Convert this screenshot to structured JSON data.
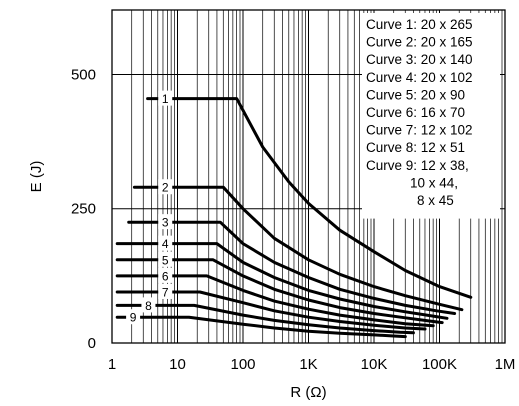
{
  "chart_data": {
    "type": "line",
    "title": "",
    "xlabel": "R (Ω)",
    "ylabel": "E (J)",
    "x_scale": "log",
    "xlim": [
      1,
      1000000
    ],
    "ylim": [
      0,
      620
    ],
    "x_ticks": [
      1,
      10,
      100,
      1000,
      10000,
      100000,
      1000000
    ],
    "x_tick_labels": [
      "1",
      "10",
      "100",
      "1K",
      "10K",
      "100K",
      "1M"
    ],
    "y_ticks": [
      0,
      250,
      500
    ],
    "y_tick_labels": [
      "0",
      "250",
      "500"
    ],
    "grid": true,
    "legend_position": "top-right",
    "legend_lines": [
      "Curve 1: 20 x 265",
      "Curve 2: 20 x 165",
      "Curve 3: 20 x 140",
      "Curve 4: 20 x 102",
      "Curve 5: 20 x 90",
      "Curve 6: 16 x 70",
      "Curve 7: 12 x 102",
      "Curve 8: 12 x 51",
      "Curve 9: 12 x 38,",
      "10 x 44,",
      "8 x 45"
    ],
    "series": [
      {
        "label": "1",
        "x": [
          3.5,
          80,
          200,
          500,
          1000,
          3000,
          10000,
          30000,
          100000,
          300000
        ],
        "y": [
          455,
          455,
          365,
          300,
          260,
          210,
          170,
          135,
          105,
          85
        ]
      },
      {
        "label": "2",
        "x": [
          2.2,
          50,
          100,
          300,
          1000,
          3000,
          10000,
          30000,
          100000,
          220000
        ],
        "y": [
          290,
          290,
          250,
          195,
          155,
          128,
          105,
          88,
          72,
          62
        ]
      },
      {
        "label": "3",
        "x": [
          1.8,
          45,
          100,
          300,
          1000,
          3000,
          10000,
          30000,
          90000,
          170000
        ],
        "y": [
          225,
          225,
          185,
          150,
          122,
          100,
          83,
          70,
          60,
          55
        ]
      },
      {
        "label": "4",
        "x": [
          1.2,
          40,
          100,
          300,
          1000,
          3000,
          10000,
          30000,
          80000,
          130000
        ],
        "y": [
          185,
          185,
          150,
          122,
          98,
          82,
          68,
          58,
          50,
          46
        ]
      },
      {
        "label": "5",
        "x": [
          1.2,
          35,
          100,
          300,
          1000,
          3000,
          10000,
          30000,
          70000,
          110000
        ],
        "y": [
          155,
          155,
          125,
          100,
          80,
          66,
          55,
          47,
          41,
          38
        ]
      },
      {
        "label": "6",
        "x": [
          1.2,
          28,
          100,
          300,
          1000,
          3000,
          10000,
          30000,
          80000
        ],
        "y": [
          125,
          125,
          98,
          78,
          63,
          52,
          43,
          36,
          32
        ]
      },
      {
        "label": "7",
        "x": [
          1.2,
          22,
          100,
          300,
          1000,
          3000,
          10000,
          30000,
          60000
        ],
        "y": [
          95,
          95,
          75,
          60,
          48,
          40,
          33,
          28,
          26
        ]
      },
      {
        "label": "8",
        "x": [
          1.2,
          18,
          100,
          300,
          1000,
          3000,
          10000,
          25000,
          40000
        ],
        "y": [
          70,
          70,
          52,
          42,
          34,
          28,
          23,
          20,
          19
        ]
      },
      {
        "label": "9",
        "x": [
          1.2,
          15,
          100,
          300,
          1000,
          3000,
          10000,
          20000,
          30000
        ],
        "y": [
          48,
          48,
          35,
          28,
          22,
          18,
          15,
          13,
          12
        ]
      }
    ]
  }
}
